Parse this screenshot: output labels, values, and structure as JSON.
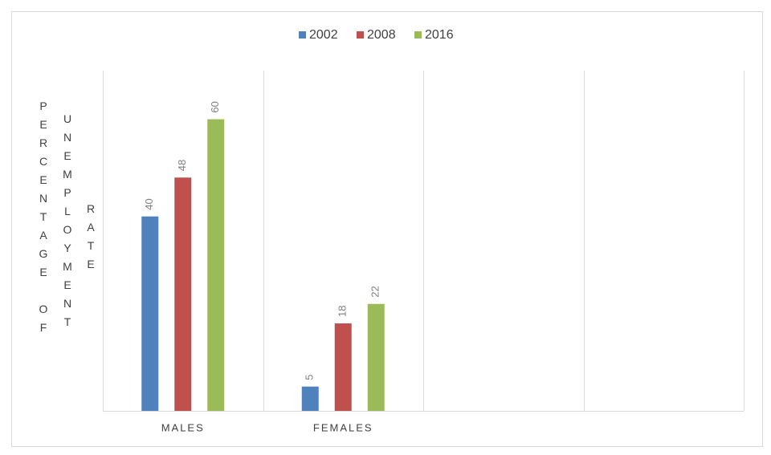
{
  "chart_data": {
    "type": "bar",
    "y_label": [
      "PERCENTAGE OF",
      "UNEMPLOYMENT",
      "RATE"
    ],
    "categories": [
      "MALES",
      "FEMALES",
      null,
      null
    ],
    "series": [
      {
        "name": "2002",
        "color": "#4f81bd",
        "values": [
          40,
          5,
          null,
          null
        ]
      },
      {
        "name": "2008",
        "color": "#c0504d",
        "values": [
          48,
          18,
          null,
          null
        ]
      },
      {
        "name": "2016",
        "color": "#9bbb59",
        "values": [
          60,
          22,
          null,
          null
        ]
      }
    ],
    "ylim": [
      0,
      70
    ],
    "category_grid": true,
    "legend": "top"
  }
}
